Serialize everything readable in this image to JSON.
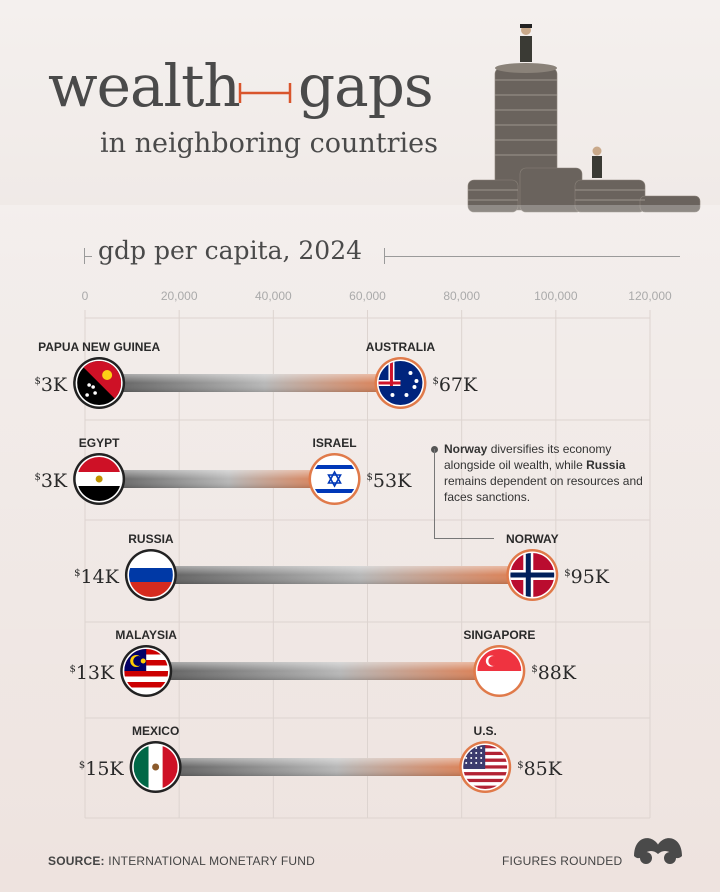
{
  "header": {
    "title_word1": "wealth",
    "title_word2": "gaps",
    "subtitle": "in neighboring countries"
  },
  "chart_data": {
    "type": "dumbbell",
    "title": "gdp per capita, 2024",
    "xlim": [
      0,
      120000
    ],
    "ticks": [
      0,
      20000,
      40000,
      60000,
      80000,
      100000,
      120000
    ],
    "tick_labels": [
      "0",
      "20,000",
      "40,000",
      "60,000",
      "80,000",
      "100,000",
      "120,000"
    ],
    "pairs": [
      {
        "low": {
          "country": "PAPUA NEW GUINEA",
          "value": 3000,
          "label": "3K",
          "flag": "papua-new-guinea-flag"
        },
        "high": {
          "country": "AUSTRALIA",
          "value": 67000,
          "label": "67K",
          "flag": "australia-flag"
        }
      },
      {
        "low": {
          "country": "EGYPT",
          "value": 3000,
          "label": "3K",
          "flag": "egypt-flag"
        },
        "high": {
          "country": "ISRAEL",
          "value": 53000,
          "label": "53K",
          "flag": "israel-flag"
        }
      },
      {
        "low": {
          "country": "RUSSIA",
          "value": 14000,
          "label": "14K",
          "flag": "russia-flag"
        },
        "high": {
          "country": "NORWAY",
          "value": 95000,
          "label": "95K",
          "flag": "norway-flag"
        }
      },
      {
        "low": {
          "country": "MALAYSIA",
          "value": 13000,
          "label": "13K",
          "flag": "malaysia-flag"
        },
        "high": {
          "country": "SINGAPORE",
          "value": 88000,
          "label": "88K",
          "flag": "singapore-flag"
        }
      },
      {
        "low": {
          "country": "MEXICO",
          "value": 15000,
          "label": "15K",
          "flag": "mexico-flag"
        },
        "high": {
          "country": "U.S.",
          "value": 85000,
          "label": "85K",
          "flag": "usa-flag"
        }
      }
    ],
    "currency_symbol": "$",
    "colors": {
      "low": "#222222",
      "high": "#e07a4a",
      "bar_gray": "#9a9a9a"
    }
  },
  "annotation": {
    "bold1": "Norway",
    "text1": " diversifies its economy alongside oil wealth, while ",
    "bold2": "Russia",
    "text2": " remains dependent on resources and faces sanctions."
  },
  "footer": {
    "source_label": "SOURCE:",
    "source_text": " INTERNATIONAL MONETARY FUND",
    "note": "FIGURES ROUNDED"
  }
}
